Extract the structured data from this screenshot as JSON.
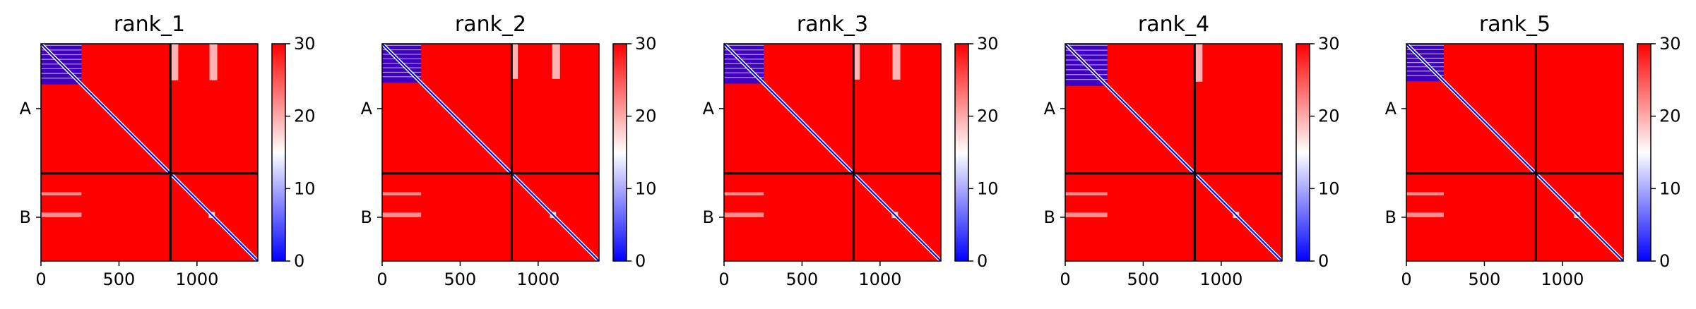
{
  "figure": {
    "layout": "1x5 grid of heatmaps with colorbars"
  },
  "chart_data": [
    {
      "type": "heatmap",
      "title": "rank_1",
      "x_range": [
        0,
        1390
      ],
      "x_ticks": [
        0,
        500,
        1000
      ],
      "x_tick_labels": [
        "0",
        "500",
        "1000"
      ],
      "y_tick_labels": [
        "A",
        "B"
      ],
      "chain_boundary": 830,
      "colorbar": {
        "min": 0,
        "max": 30,
        "ticks": [
          0,
          10,
          20,
          30
        ],
        "colormap": "bwr"
      },
      "features": {
        "diag_block_A_end": 260,
        "cross_cols": [
          [
            830,
            880
          ],
          [
            1080,
            1130
          ]
        ]
      }
    },
    {
      "type": "heatmap",
      "title": "rank_2",
      "x_range": [
        0,
        1390
      ],
      "x_ticks": [
        0,
        500,
        1000
      ],
      "x_tick_labels": [
        "0",
        "500",
        "1000"
      ],
      "y_tick_labels": [
        "A",
        "B"
      ],
      "chain_boundary": 830,
      "colorbar": {
        "min": 0,
        "max": 30,
        "ticks": [
          0,
          10,
          20,
          30
        ],
        "colormap": "bwr"
      },
      "features": {
        "diag_block_A_end": 250,
        "cross_cols": [
          [
            830,
            870
          ],
          [
            1090,
            1140
          ]
        ]
      }
    },
    {
      "type": "heatmap",
      "title": "rank_3",
      "x_range": [
        0,
        1390
      ],
      "x_ticks": [
        0,
        500,
        1000
      ],
      "x_tick_labels": [
        "0",
        "500",
        "1000"
      ],
      "y_tick_labels": [
        "A",
        "B"
      ],
      "chain_boundary": 830,
      "colorbar": {
        "min": 0,
        "max": 30,
        "ticks": [
          0,
          10,
          20,
          30
        ],
        "colormap": "bwr"
      },
      "features": {
        "diag_block_A_end": 255,
        "cross_cols": [
          [
            830,
            870
          ],
          [
            1080,
            1130
          ]
        ]
      }
    },
    {
      "type": "heatmap",
      "title": "rank_4",
      "x_range": [
        0,
        1390
      ],
      "x_ticks": [
        0,
        500,
        1000
      ],
      "x_tick_labels": [
        "0",
        "500",
        "1000"
      ],
      "y_tick_labels": [
        "A",
        "B"
      ],
      "chain_boundary": 830,
      "colorbar": {
        "min": 0,
        "max": 30,
        "ticks": [
          0,
          10,
          20,
          30
        ],
        "colormap": "bwr"
      },
      "features": {
        "diag_block_A_end": 270,
        "cross_cols": [
          [
            830,
            880
          ]
        ]
      }
    },
    {
      "type": "heatmap",
      "title": "rank_5",
      "x_range": [
        0,
        1390
      ],
      "x_ticks": [
        0,
        500,
        1000
      ],
      "x_tick_labels": [
        "0",
        "500",
        "1000"
      ],
      "y_tick_labels": [
        "A",
        "B"
      ],
      "chain_boundary": 830,
      "colorbar": {
        "min": 0,
        "max": 30,
        "ticks": [
          0,
          10,
          20,
          30
        ],
        "colormap": "bwr"
      },
      "features": {
        "diag_block_A_end": 240,
        "cross_cols": []
      }
    }
  ],
  "colors": {
    "high": "#ff0000",
    "mid": "#ffffff",
    "low": "#0000ff",
    "boundary": "#000000"
  }
}
